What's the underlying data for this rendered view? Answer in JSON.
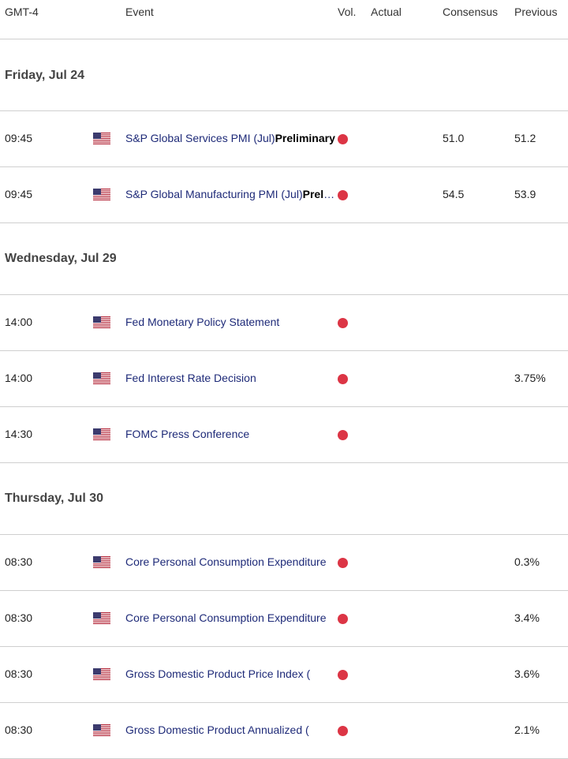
{
  "header": {
    "timezone": "GMT-4",
    "event": "Event",
    "vol": "Vol.",
    "actual": "Actual",
    "consensus": "Consensus",
    "previous": "Previous"
  },
  "colors": {
    "volatility_high": "#dc3545",
    "event_link": "#1e2a78"
  },
  "days": [
    {
      "title": "Friday, Jul 24",
      "events": [
        {
          "time": "09:45",
          "flag": "us-flag-icon",
          "name": "S&P Global Services PMI (Jul)",
          "suffix": "Preliminary",
          "actual": "",
          "consensus": "51.0",
          "previous": "51.2"
        },
        {
          "time": "09:45",
          "flag": "us-flag-icon",
          "name": "S&P Global Manufacturing PMI (Jul)",
          "suffix": "Preliminary",
          "actual": "",
          "consensus": "54.5",
          "previous": "53.9"
        }
      ]
    },
    {
      "title": "Wednesday, Jul 29",
      "events": [
        {
          "time": "14:00",
          "flag": "us-flag-icon",
          "name": "Fed Monetary Policy Statement",
          "suffix": "",
          "actual": "",
          "consensus": "",
          "previous": ""
        },
        {
          "time": "14:00",
          "flag": "us-flag-icon",
          "name": "Fed Interest Rate Decision",
          "suffix": "",
          "actual": "",
          "consensus": "",
          "previous": "3.75%"
        },
        {
          "time": "14:30",
          "flag": "us-flag-icon",
          "name": "FOMC Press Conference",
          "suffix": "",
          "actual": "",
          "consensus": "",
          "previous": ""
        }
      ]
    },
    {
      "title": "Thursday, Jul 30",
      "events": [
        {
          "time": "08:30",
          "flag": "us-flag-icon",
          "name": "Core Personal Consumption Expenditure",
          "suffix": "",
          "actual": "",
          "consensus": "",
          "previous": "0.3%"
        },
        {
          "time": "08:30",
          "flag": "us-flag-icon",
          "name": "Core Personal Consumption Expenditure",
          "suffix": "",
          "actual": "",
          "consensus": "",
          "previous": "3.4%"
        },
        {
          "time": "08:30",
          "flag": "us-flag-icon",
          "name": "Gross Domestic Product Price Index (",
          "suffix": "",
          "actual": "",
          "consensus": "",
          "previous": "3.6%"
        },
        {
          "time": "08:30",
          "flag": "us-flag-icon",
          "name": "Gross Domestic Product Annualized (",
          "suffix": "",
          "actual": "",
          "consensus": "",
          "previous": "2.1%"
        }
      ]
    }
  ]
}
